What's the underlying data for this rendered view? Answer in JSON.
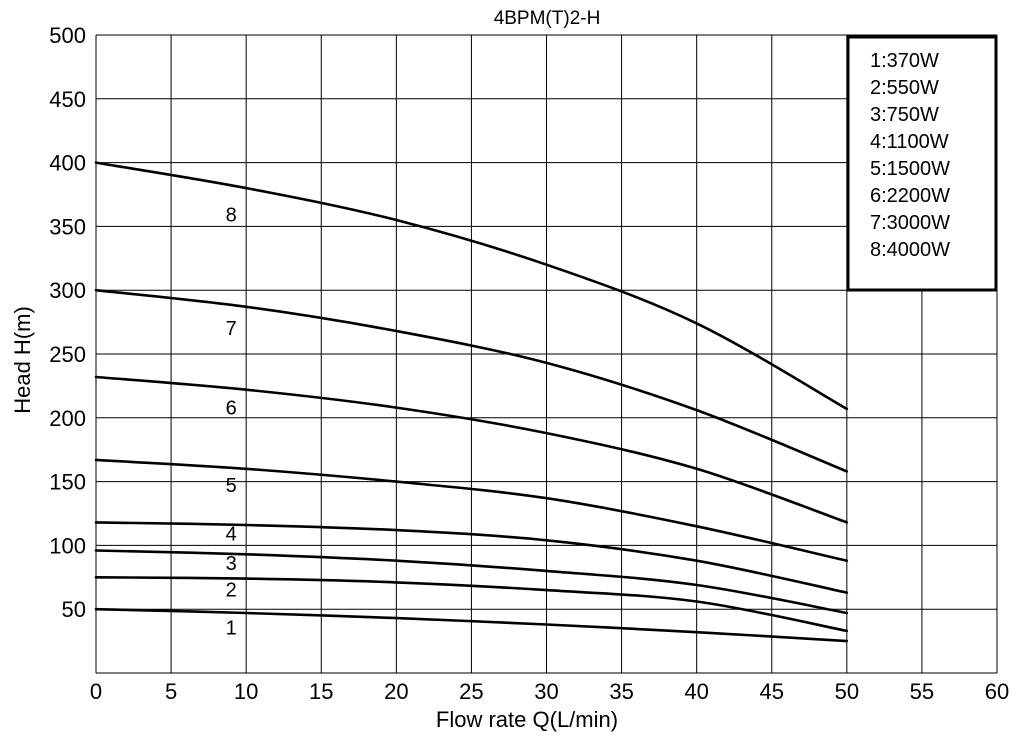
{
  "chart_data": {
    "type": "line",
    "title": "4BPM(T)2-H",
    "xlabel": "Flow rate Q(L/min)",
    "ylabel": "Head H(m)",
    "xlim": [
      0,
      60
    ],
    "ylim": [
      0,
      500
    ],
    "x_ticks": [
      "0",
      "5",
      "10",
      "15",
      "20",
      "25",
      "30",
      "35",
      "40",
      "45",
      "50",
      "55",
      "60"
    ],
    "y_ticks": [
      "50",
      "100",
      "150",
      "200",
      "250",
      "300",
      "350",
      "400",
      "450",
      "500"
    ],
    "grid": true,
    "legend_position": "top-right",
    "legend": [
      "1:370W",
      "2:550W",
      "3:750W",
      "4:1100W",
      "5:1500W",
      "6:2200W",
      "7:3000W",
      "8:4000W"
    ],
    "x": [
      0,
      10,
      20,
      30,
      40,
      50
    ],
    "series": [
      {
        "name": "1",
        "values": [
          50,
          47,
          43,
          38,
          32,
          25
        ]
      },
      {
        "name": "2",
        "values": [
          75,
          74,
          71,
          65,
          56,
          33
        ]
      },
      {
        "name": "3",
        "values": [
          96,
          93,
          88,
          80,
          69,
          47
        ]
      },
      {
        "name": "4",
        "values": [
          118,
          116,
          112,
          104,
          88,
          63
        ]
      },
      {
        "name": "5",
        "values": [
          167,
          160,
          150,
          137,
          115,
          88
        ]
      },
      {
        "name": "6",
        "values": [
          232,
          222,
          208,
          188,
          160,
          118
        ]
      },
      {
        "name": "7",
        "values": [
          300,
          287,
          268,
          243,
          206,
          158
        ]
      },
      {
        "name": "8",
        "values": [
          400,
          380,
          355,
          320,
          274,
          207
        ]
      }
    ]
  }
}
